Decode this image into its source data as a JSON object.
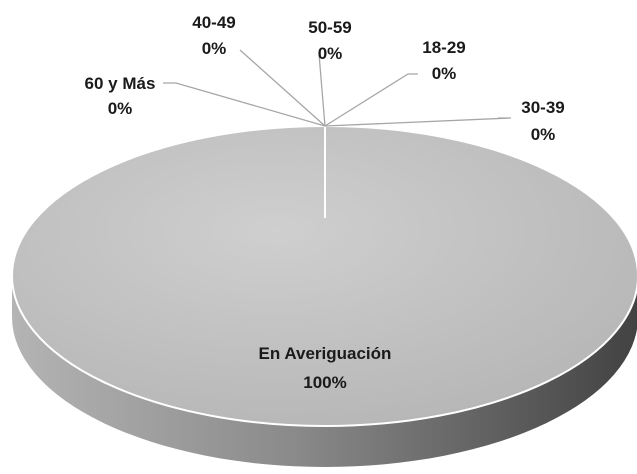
{
  "chart_data": {
    "type": "pie",
    "style": "3d",
    "categories": [
      "En Averiguación",
      "18-29",
      "30-39",
      "40-49",
      "50-59",
      "60 y Más"
    ],
    "values": [
      100,
      0,
      0,
      0,
      0,
      0
    ],
    "data_labels": [
      "100%",
      "0%",
      "0%",
      "0%",
      "0%",
      "0%"
    ],
    "legend": "none",
    "colors": {
      "slice_top": "#c0c0c0",
      "slice_side_light": "#9a9a9a",
      "slice_side_dark": "#4a4a4a",
      "leader_lines": "#a6a6a6",
      "label_text": "#1a1a1a"
    }
  }
}
